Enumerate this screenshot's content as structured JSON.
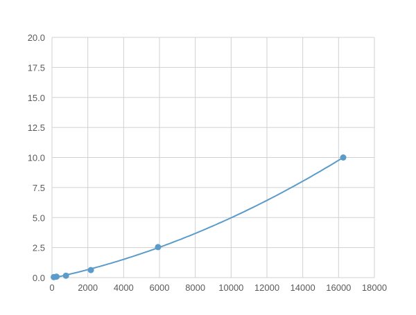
{
  "chart_data": {
    "type": "scatter",
    "title": "",
    "xlabel": "",
    "ylabel": "",
    "xlim": [
      0,
      18000
    ],
    "ylim": [
      0,
      20
    ],
    "grid": true,
    "x_ticks": [
      "0",
      "2000",
      "4000",
      "6000",
      "8000",
      "10000",
      "12000",
      "14000",
      "16000",
      "18000"
    ],
    "y_ticks": [
      "0.0",
      "2.5",
      "5.0",
      "7.5",
      "10.0",
      "12.5",
      "15.0",
      "17.5",
      "20.0"
    ],
    "series": [
      {
        "x": [
          100,
          250,
          780,
          2170,
          5920,
          16260
        ],
        "y": [
          0.04,
          0.08,
          0.16,
          0.63,
          2.54,
          10.0
        ]
      }
    ],
    "line_style": "smooth fit",
    "color": "#5b9bc9"
  }
}
